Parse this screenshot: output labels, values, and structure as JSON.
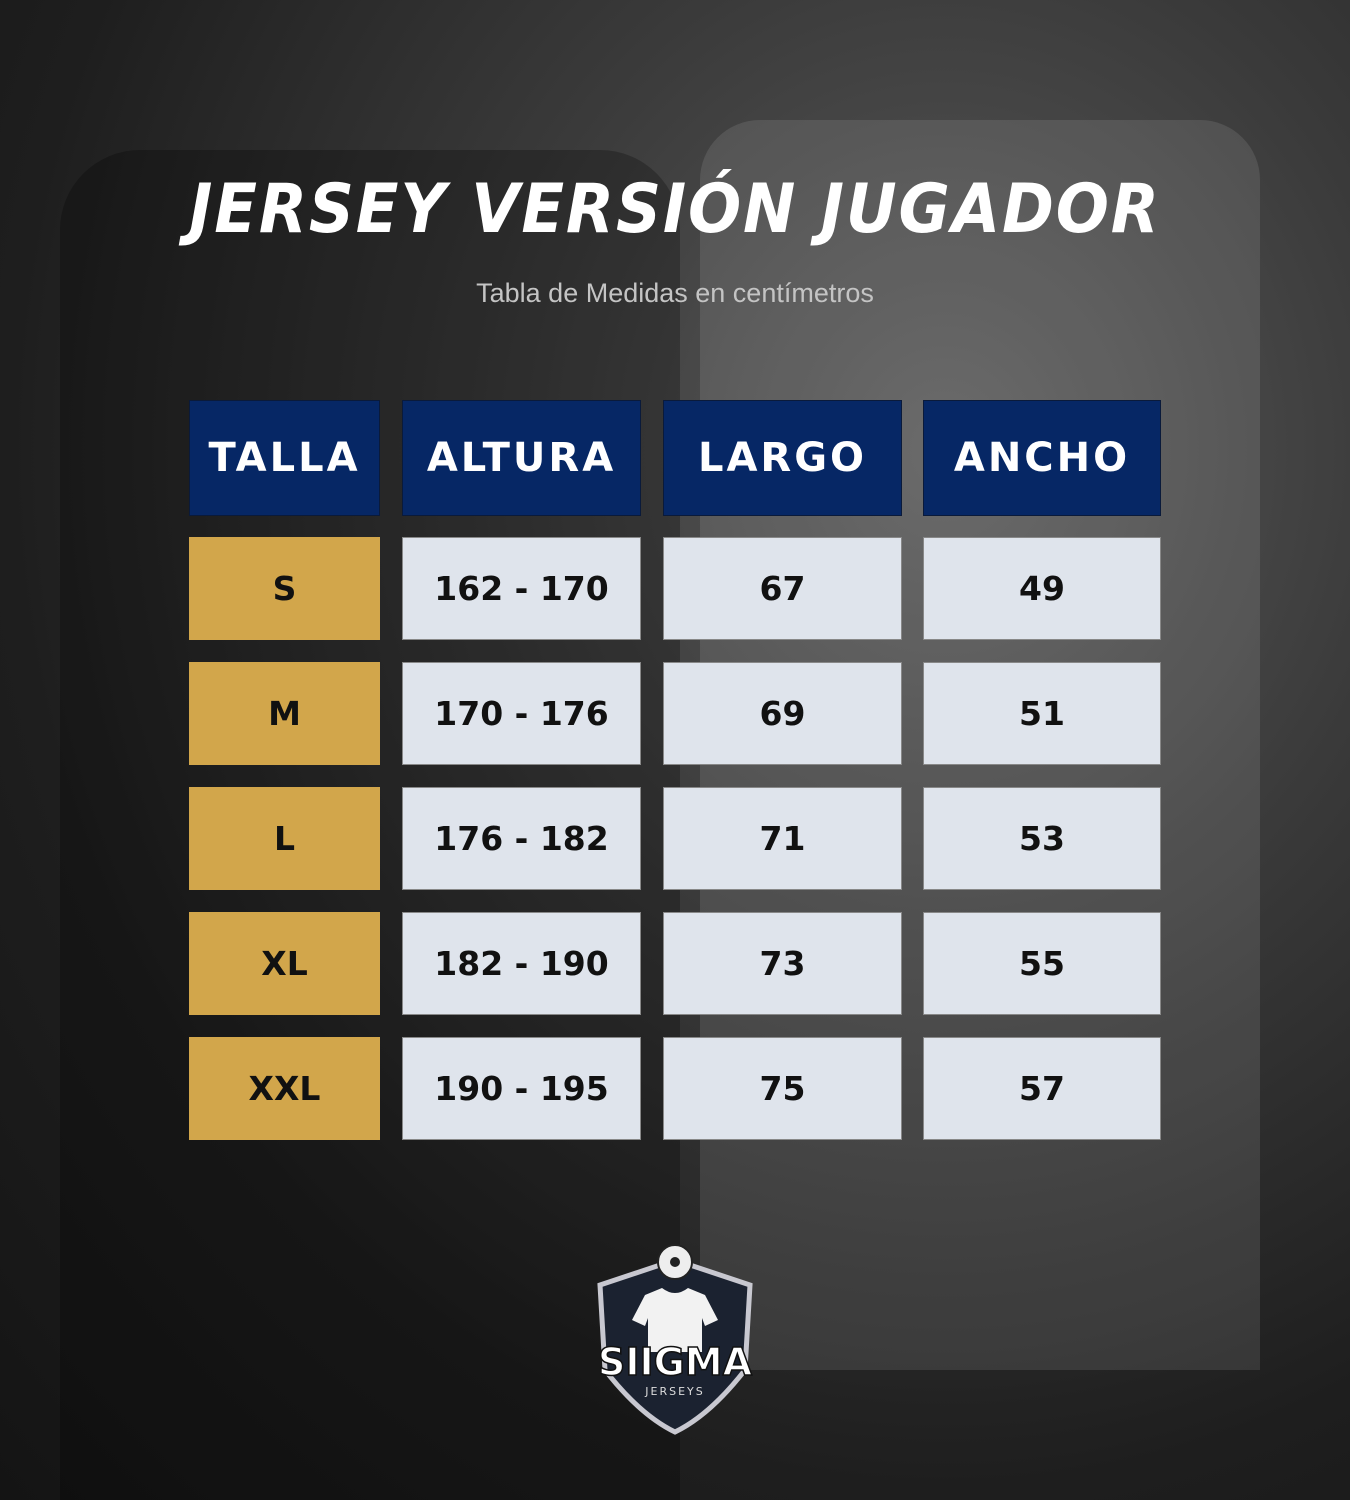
{
  "title": "JERSEY VERSIÓN JUGADOR",
  "subtitle": "Tabla de Medidas en centímetros",
  "colors": {
    "header": "#062765",
    "size_cell": "#d2a64b",
    "value_cell": "#dfe4ec"
  },
  "table": {
    "headers": [
      "TALLA",
      "ALTURA",
      "LARGO",
      "ANCHO"
    ],
    "rows": [
      [
        "S",
        "162 - 170",
        "67",
        "49"
      ],
      [
        "M",
        "170 - 176",
        "69",
        "51"
      ],
      [
        "L",
        "176 - 182",
        "71",
        "53"
      ],
      [
        "XL",
        "182 - 190",
        "73",
        "55"
      ],
      [
        "XXL",
        "190 - 195",
        "75",
        "57"
      ]
    ]
  },
  "logo": {
    "name": "SIIGMA",
    "tagline": "JERSEYS",
    "icon": "shield-jersey-ball-logo"
  }
}
